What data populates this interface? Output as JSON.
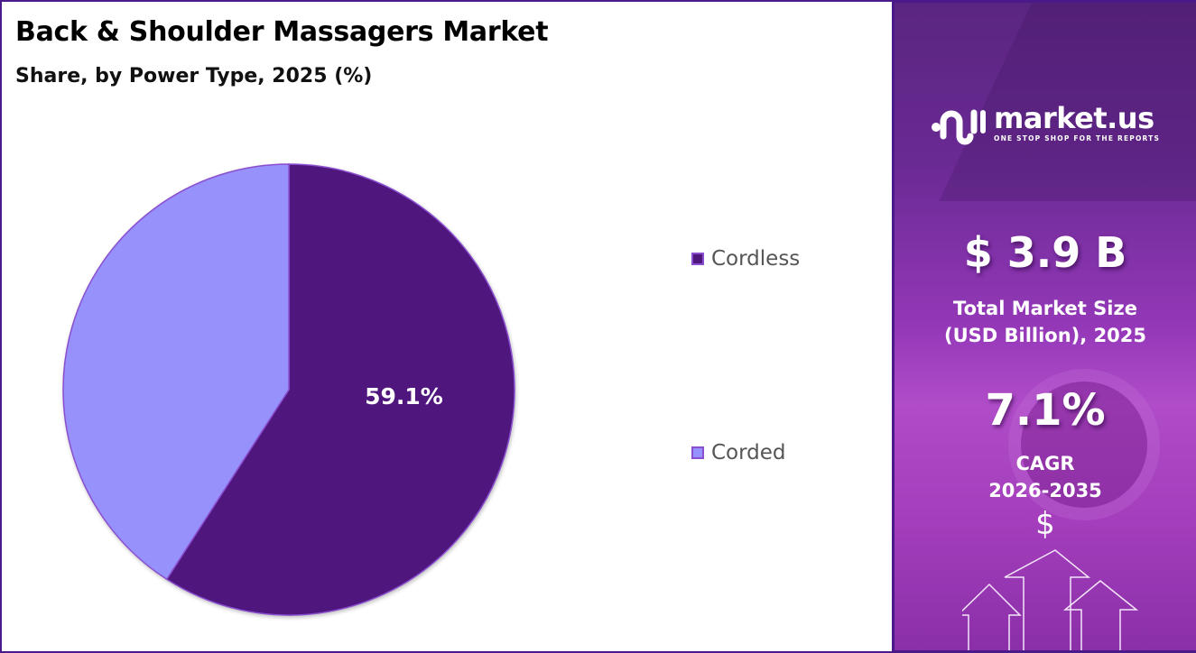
{
  "header": {
    "title": "Back & Shoulder Massagers Market",
    "subtitle": "Share, by Power Type, 2025 (%)"
  },
  "chart_data": {
    "type": "pie",
    "title": "Back & Shoulder Massagers Market",
    "subtitle": "Share, by Power Type, 2025 (%)",
    "categories": [
      "Cordless",
      "Corded"
    ],
    "values": [
      59.1,
      40.9
    ],
    "colors": [
      "#4f167e",
      "#9791fc"
    ],
    "data_labels": [
      "59.1%",
      ""
    ],
    "legend_position": "right",
    "start_angle_deg": 0,
    "direction": "clockwise"
  },
  "pie": {
    "label_cordless": "59.1%"
  },
  "legend": {
    "items": [
      {
        "label": "Cordless",
        "color": "#4f167e"
      },
      {
        "label": "Corded",
        "color": "#9791fc"
      }
    ]
  },
  "sidebar": {
    "brand_name": "market.us",
    "brand_tagline": "ONE STOP SHOP FOR THE REPORTS",
    "market_size_value": "$ 3.9 B",
    "market_size_label_line1": "Total Market Size",
    "market_size_label_line2": "(USD Billion), 2025",
    "cagr_value": "7.1%",
    "cagr_label": "CAGR",
    "cagr_period": "2026-2035",
    "dollar_symbol": "$"
  },
  "colors": {
    "accent_dark": "#4f167e",
    "accent_light": "#9791fc",
    "border": "#4a1a8a",
    "panel_top": "#5a2580",
    "panel_mid": "#b04cc8"
  }
}
